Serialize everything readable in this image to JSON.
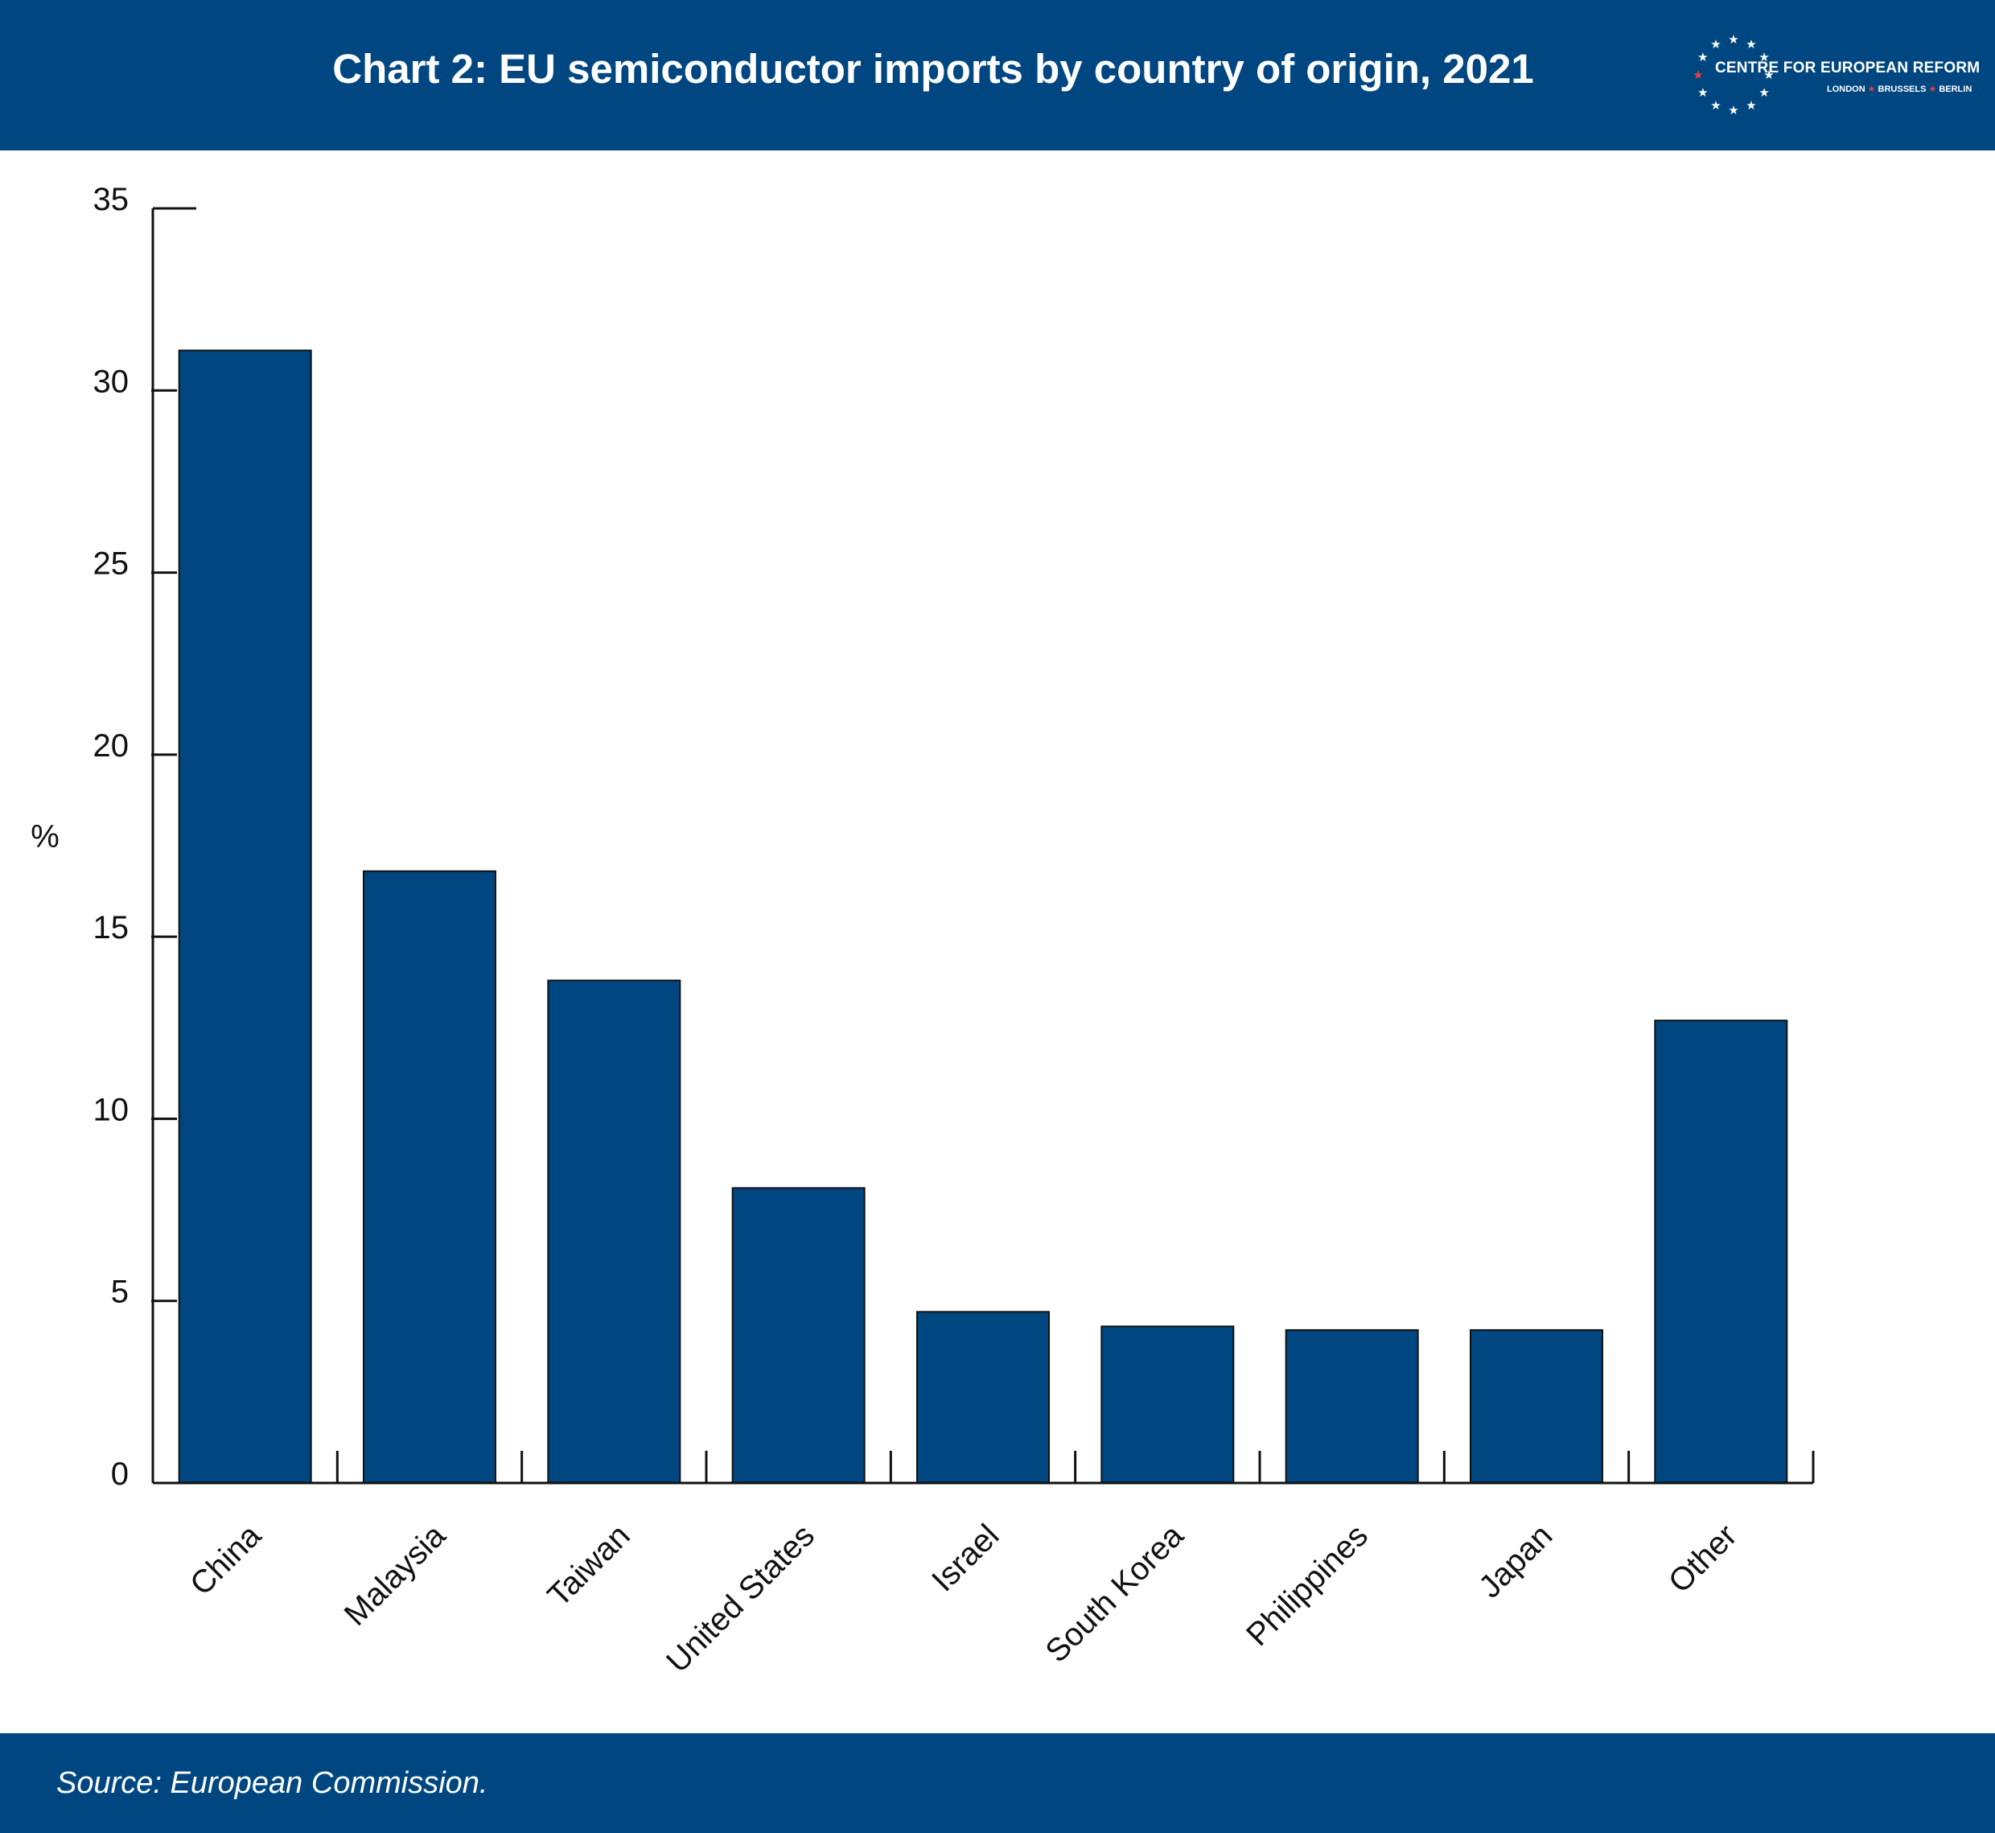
{
  "header": {
    "title": "Chart 2: EU semiconductor imports by country of origin, 2021",
    "background": "#004781"
  },
  "logo": {
    "org": "CENTRE FOR EUROPEAN REFORM",
    "cities": [
      "LONDON",
      "BRUSSELS",
      "BERLIN"
    ]
  },
  "footer": {
    "source": "Source: European Commission."
  },
  "chart_data": {
    "type": "bar",
    "categories": [
      "China",
      "Malaysia",
      "Taiwan",
      "United States",
      "Israel",
      "South Korea",
      "Philippines",
      "Japan",
      "Other"
    ],
    "values": [
      31.1,
      16.8,
      13.8,
      8.1,
      4.7,
      4.3,
      4.2,
      4.2,
      12.7
    ],
    "ylabel": "%",
    "ylim": [
      0,
      35
    ],
    "yticks": [
      0,
      5,
      10,
      15,
      20,
      25,
      30,
      35
    ],
    "grid": false,
    "bar_color": "#004781"
  }
}
